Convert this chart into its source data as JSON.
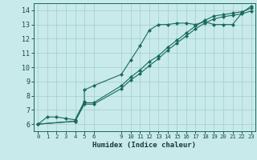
{
  "xlabel": "Humidex (Indice chaleur)",
  "background_color": "#c8eaea",
  "grid_color": "#a8d0d0",
  "line_color": "#1a6b5a",
  "xlim": [
    -0.5,
    23.5
  ],
  "ylim": [
    5.5,
    14.5
  ],
  "xticks": [
    0,
    1,
    2,
    3,
    4,
    5,
    6,
    9,
    10,
    11,
    12,
    13,
    14,
    15,
    16,
    17,
    18,
    19,
    20,
    21,
    22,
    23
  ],
  "yticks": [
    6,
    7,
    8,
    9,
    10,
    11,
    12,
    13,
    14
  ],
  "series": [
    {
      "x": [
        0,
        1,
        2,
        3,
        4,
        5,
        5,
        6,
        9,
        10,
        11,
        12,
        13,
        14,
        15,
        16,
        17,
        18,
        19,
        20,
        21,
        22,
        23
      ],
      "y": [
        6.0,
        6.5,
        6.5,
        6.4,
        6.3,
        7.6,
        8.4,
        8.7,
        9.5,
        10.5,
        11.5,
        12.6,
        13.0,
        13.0,
        13.1,
        13.1,
        13.0,
        13.2,
        13.0,
        13.0,
        13.0,
        13.8,
        14.3
      ]
    },
    {
      "x": [
        0,
        4,
        5,
        6,
        9,
        10,
        11,
        12,
        13,
        14,
        15,
        16,
        17,
        18,
        19,
        20,
        21,
        22,
        23
      ],
      "y": [
        6.0,
        6.2,
        7.5,
        7.5,
        8.7,
        9.3,
        9.8,
        10.4,
        10.8,
        11.4,
        11.9,
        12.4,
        12.9,
        13.3,
        13.6,
        13.7,
        13.8,
        13.9,
        14.15
      ]
    },
    {
      "x": [
        0,
        4,
        5,
        6,
        9,
        10,
        11,
        12,
        13,
        14,
        15,
        16,
        17,
        18,
        19,
        20,
        21,
        22,
        23
      ],
      "y": [
        6.0,
        6.2,
        7.4,
        7.4,
        8.5,
        9.1,
        9.55,
        10.1,
        10.6,
        11.2,
        11.7,
        12.2,
        12.7,
        13.1,
        13.4,
        13.55,
        13.65,
        13.75,
        13.95
      ]
    }
  ]
}
